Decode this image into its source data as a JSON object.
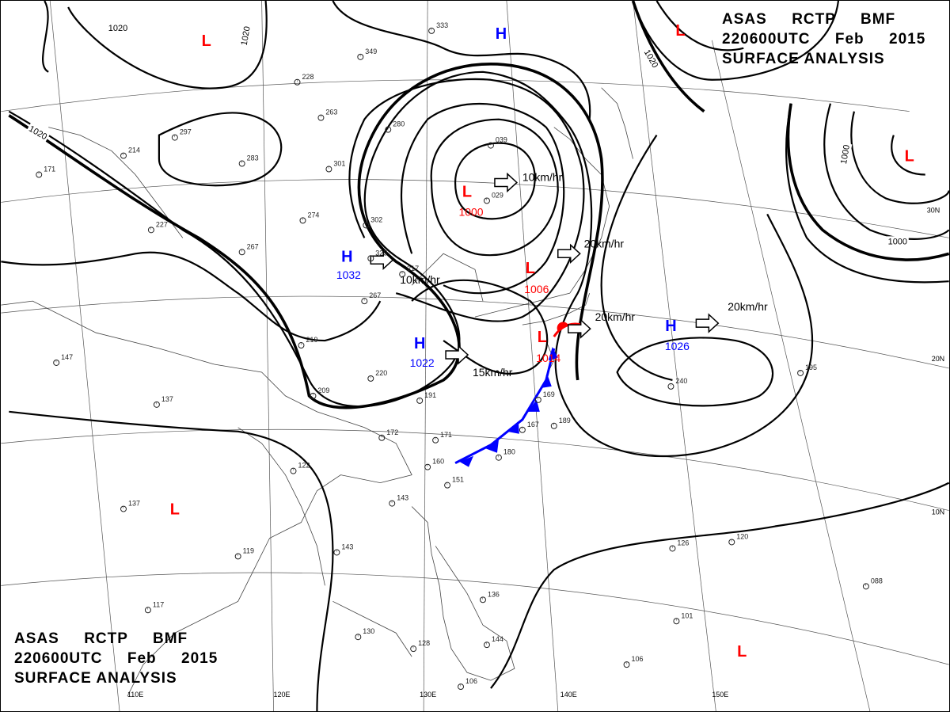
{
  "header_top": {
    "line1": [
      "ASAS",
      "RCTP",
      "BMF"
    ],
    "line2": [
      "220600UTC",
      "Feb",
      "2015"
    ],
    "line3": "SURFACE ANALYSIS"
  },
  "header_bottom": {
    "line1": [
      "ASAS",
      "RCTP",
      "BMF"
    ],
    "line2": [
      "220600UTC",
      "Feb",
      "2015"
    ],
    "line3": "SURFACE ANALYSIS"
  },
  "pressure_centers": [
    {
      "type": "L",
      "value": "1000",
      "color": "#ff0000"
    },
    {
      "type": "L",
      "value": "1006",
      "color": "#ff0000"
    },
    {
      "type": "L",
      "value": "1014",
      "color": "#ff0000"
    },
    {
      "type": "H",
      "value": "1032",
      "color": "#0000ff"
    },
    {
      "type": "H",
      "value": "1022",
      "color": "#0000ff"
    },
    {
      "type": "H",
      "value": "1026",
      "color": "#0000ff"
    },
    {
      "type": "H",
      "value": "",
      "color": "#0000ff"
    },
    {
      "type": "L",
      "value": "",
      "color": "#ff0000"
    },
    {
      "type": "L",
      "value": "",
      "color": "#ff0000"
    },
    {
      "type": "L",
      "value": "",
      "color": "#ff0000"
    },
    {
      "type": "L",
      "value": "",
      "color": "#ff0000"
    },
    {
      "type": "L",
      "value": "",
      "color": "#ff0000"
    }
  ],
  "movements": [
    "10km/hr",
    "20km/hr",
    "10km/hr",
    "15km/hr",
    "20km/hr",
    "20km/hr"
  ],
  "isobar_labels": [
    "1020",
    "1020",
    "1020",
    "1020",
    "1000",
    "1000"
  ],
  "lat_labels": [
    "30N",
    "20N",
    "10N"
  ],
  "lon_labels": [
    "110E",
    "120E",
    "130E",
    "140E",
    "150E"
  ],
  "stations": [
    "333",
    "349",
    "228",
    "263",
    "297",
    "280",
    "283",
    "301",
    "274",
    "302",
    "325",
    "217",
    "267",
    "214",
    "171",
    "227",
    "267",
    "219",
    "209",
    "220",
    "191",
    "172",
    "171",
    "160",
    "151",
    "143",
    "122",
    "119",
    "143",
    "137",
    "137",
    "147",
    "039",
    "029",
    "240",
    "195",
    "189",
    "180",
    "167",
    "169",
    "136",
    "130",
    "128",
    "144",
    "106",
    "101",
    "106",
    "126",
    "120",
    "088",
    "117"
  ]
}
